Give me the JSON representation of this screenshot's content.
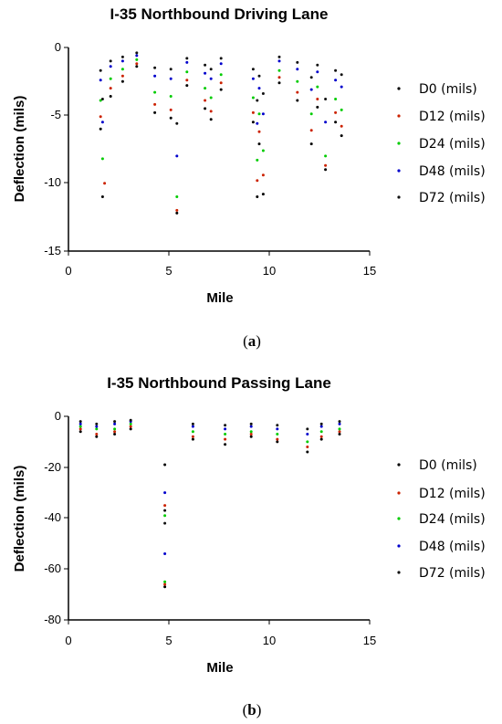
{
  "series_colors": [
    "#000000",
    "#cc2200",
    "#00cc00",
    "#0000cc",
    "#111111"
  ],
  "chart_data": [
    {
      "type": "scatter",
      "title": "I-35 Northbound Driving Lane",
      "xlabel": "Mile",
      "ylabel": "Deflection (mils)",
      "xlim": [
        0,
        15
      ],
      "ylim": [
        -15,
        0
      ],
      "xticks": [
        "0",
        "5",
        "10",
        "15"
      ],
      "yticks": [
        "0",
        "-5",
        "-10",
        "-15"
      ],
      "legend_position": "right",
      "series": [
        {
          "name": "D0 (mils)",
          "x": [
            1.6,
            1.7,
            2.1,
            2.7,
            3.4,
            4.3,
            5.1,
            5.4,
            5.9,
            6.8,
            7.1,
            7.6,
            9.2,
            9.4,
            9.5,
            9.7,
            10.5,
            11.4,
            12.1,
            12.4,
            12.8,
            13.3,
            13.6
          ],
          "y": [
            -6,
            -11,
            -3.6,
            -2.5,
            -1.4,
            -4.8,
            -5.2,
            -12.2,
            -2.8,
            -4.5,
            -5.3,
            -3.1,
            -5.5,
            -11,
            -7.1,
            -10.8,
            -2.6,
            -3.9,
            -7.1,
            -4.4,
            -9,
            -5.5,
            -6.5
          ]
        },
        {
          "name": "D12 (mils)",
          "x": [
            1.6,
            1.8,
            2.1,
            2.7,
            3.4,
            4.3,
            5.1,
            5.4,
            5.9,
            6.8,
            7.1,
            7.6,
            9.2,
            9.4,
            9.5,
            9.7,
            10.5,
            11.4,
            12.1,
            12.4,
            12.8,
            13.3,
            13.6
          ],
          "y": [
            -5.1,
            -10,
            -3,
            -2.1,
            -1.2,
            -4.2,
            -4.6,
            -12,
            -2.4,
            -3.9,
            -4.7,
            -2.6,
            -4.8,
            -9.8,
            -6.2,
            -9.4,
            -2.2,
            -3.3,
            -6.1,
            -3.8,
            -8.7,
            -4.8,
            -5.8
          ]
        },
        {
          "name": "D24 (mils)",
          "x": [
            1.6,
            1.7,
            2.1,
            2.7,
            3.4,
            4.3,
            5.1,
            5.4,
            5.9,
            6.8,
            7.1,
            7.6,
            9.2,
            9.4,
            9.5,
            9.7,
            10.5,
            11.4,
            12.1,
            12.4,
            12.8,
            13.3,
            13.6
          ],
          "y": [
            -3.9,
            -8.2,
            -2.3,
            -1.6,
            -0.9,
            -3.3,
            -3.6,
            -11,
            -1.8,
            -3,
            -3.7,
            -2,
            -3.7,
            -8.3,
            -4.9,
            -7.6,
            -1.7,
            -2.5,
            -4.9,
            -2.9,
            -8,
            -3.8,
            -4.6
          ]
        },
        {
          "name": "D48 (mils)",
          "x": [
            1.6,
            1.7,
            2.1,
            2.7,
            3.4,
            4.3,
            5.1,
            5.4,
            5.9,
            6.8,
            7.1,
            7.6,
            9.2,
            9.4,
            9.5,
            9.7,
            10.5,
            11.4,
            12.1,
            12.4,
            12.8,
            13.3,
            13.6
          ],
          "y": [
            -2.4,
            -5.5,
            -1.4,
            -1,
            -0.6,
            -2.1,
            -2.3,
            -8,
            -1.1,
            -1.9,
            -2.3,
            -1.2,
            -2.3,
            -5.6,
            -3,
            -4.9,
            -1,
            -1.6,
            -3.1,
            -1.8,
            -5.5,
            -2.4,
            -2.9
          ]
        },
        {
          "name": "D72 (mils)",
          "x": [
            1.6,
            1.7,
            2.1,
            2.7,
            3.4,
            4.3,
            5.1,
            5.4,
            5.9,
            6.8,
            7.1,
            7.6,
            9.2,
            9.4,
            9.5,
            9.7,
            10.5,
            11.4,
            12.1,
            12.4,
            12.8,
            13.3,
            13.6
          ],
          "y": [
            -1.7,
            -3.8,
            -1,
            -0.7,
            -0.4,
            -1.5,
            -1.6,
            -5.6,
            -0.8,
            -1.3,
            -1.6,
            -0.8,
            -1.6,
            -3.9,
            -2.1,
            -3.4,
            -0.7,
            -1.1,
            -2.2,
            -1.3,
            -3.8,
            -1.7,
            -2
          ]
        }
      ]
    },
    {
      "type": "scatter",
      "title": "I-35 Northbound Passing Lane",
      "xlabel": "Mile",
      "ylabel": "Deflection (mils)",
      "xlim": [
        0,
        15
      ],
      "ylim": [
        -80,
        0
      ],
      "xticks": [
        "0",
        "5",
        "10",
        "15"
      ],
      "yticks": [
        "0",
        "-20",
        "-40",
        "-60",
        "-80"
      ],
      "legend_position": "right",
      "series": [
        {
          "name": "D0 (mils)",
          "x": [
            0.6,
            1.4,
            2.3,
            3.1,
            4.8,
            4.8,
            6.2,
            7.8,
            9.1,
            10.4,
            11.9,
            12.6,
            13.5
          ],
          "y": [
            -6,
            -8,
            -7,
            -5,
            -67,
            -19,
            -9,
            -11,
            -8,
            -10,
            -14,
            -9,
            -7
          ]
        },
        {
          "name": "D12 (mils)",
          "x": [
            0.6,
            1.4,
            2.3,
            3.1,
            4.8,
            4.8,
            6.2,
            7.8,
            9.1,
            10.4,
            11.9,
            12.6,
            13.5
          ],
          "y": [
            -5,
            -7,
            -6,
            -4,
            -66,
            -35,
            -8,
            -9,
            -7,
            -9,
            -12,
            -8,
            -6
          ]
        },
        {
          "name": "D24 (mils)",
          "x": [
            0.6,
            1.4,
            2.3,
            3.1,
            4.8,
            4.8,
            6.2,
            7.8,
            9.1,
            10.4,
            11.9,
            12.6,
            13.5
          ],
          "y": [
            -4,
            -5,
            -5,
            -3,
            -65,
            -39,
            -6,
            -7,
            -6,
            -7,
            -10,
            -6,
            -5
          ]
        },
        {
          "name": "D48 (mils)",
          "x": [
            0.6,
            1.4,
            2.3,
            3.1,
            4.8,
            4.8,
            6.2,
            7.8,
            9.1,
            10.4,
            11.9,
            12.6,
            13.5
          ],
          "y": [
            -3,
            -4,
            -3,
            -2,
            -54,
            -30,
            -4,
            -5,
            -4,
            -5,
            -7,
            -4,
            -3
          ]
        },
        {
          "name": "D72 (mils)",
          "x": [
            0.6,
            1.4,
            2.3,
            3.1,
            4.8,
            4.8,
            6.2,
            7.8,
            9.1,
            10.4,
            11.9,
            12.6,
            13.5
          ],
          "y": [
            -2,
            -3,
            -2,
            -1.5,
            -42,
            -37,
            -3,
            -3.5,
            -3,
            -3.5,
            -5,
            -3,
            -2
          ]
        }
      ]
    }
  ],
  "captions": [
    "a",
    "b"
  ]
}
